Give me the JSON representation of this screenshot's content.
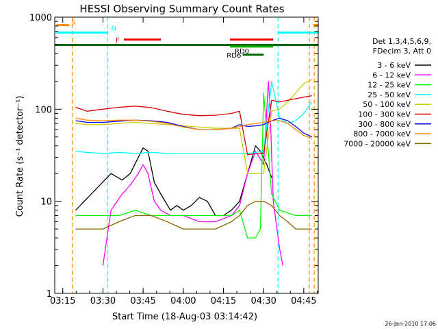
{
  "chart_data": {
    "type": "line",
    "title": "HESSI Observing Summary Count Rates",
    "xlabel": "Start Time (18-Aug-03 03:14:42)",
    "ylabel": "Count Rate (s⁻¹ detector⁻¹)",
    "yscale": "log",
    "ylim": [
      1,
      1000
    ],
    "xlim": [
      3.2,
      4.84
    ],
    "x_ticks": [
      {
        "v": 3.25,
        "label": "03:15"
      },
      {
        "v": 3.5,
        "label": "03:30"
      },
      {
        "v": 3.75,
        "label": "03:45"
      },
      {
        "v": 4.0,
        "label": "04:00"
      },
      {
        "v": 4.25,
        "label": "04:15"
      },
      {
        "v": 4.5,
        "label": "04:30"
      },
      {
        "v": 4.75,
        "label": "04:45"
      }
    ],
    "y_ticks": [
      {
        "v": 1,
        "label": "1"
      },
      {
        "v": 10,
        "label": "10"
      },
      {
        "v": 100,
        "label": "100"
      },
      {
        "v": 1000,
        "label": "1000"
      }
    ],
    "legend_header": [
      "Det 1,3,4,5,6,9,",
      "FDecim 3, Att 0"
    ],
    "legend_position": "right",
    "timestamp": "26-Jan-2010 17:06",
    "series": [
      {
        "name": "3 - 6 keV",
        "color": "#000000",
        "x": [
          3.33,
          3.55,
          3.62,
          3.67,
          3.72,
          3.75,
          3.78,
          3.82,
          3.86,
          3.92,
          3.96,
          4.0,
          4.05,
          4.1,
          4.15,
          4.2,
          4.25,
          4.3,
          4.35,
          4.4,
          4.45,
          4.48,
          4.52,
          4.55
        ],
        "values": [
          8,
          20,
          17,
          20,
          30,
          38,
          35,
          16,
          12,
          8,
          9,
          8,
          9,
          11,
          10,
          7,
          7,
          8,
          10,
          20,
          40,
          35,
          25,
          18
        ]
      },
      {
        "name": "6 - 12 keV",
        "color": "#ff00ff",
        "x": [
          3.5,
          3.55,
          3.62,
          3.67,
          3.72,
          3.75,
          3.78,
          3.82,
          3.86,
          3.92,
          4.0,
          4.1,
          4.2,
          4.3,
          4.35,
          4.4,
          4.45,
          4.5,
          4.53,
          4.54,
          4.56,
          4.6,
          4.62
        ],
        "values": [
          2,
          8,
          12,
          15,
          20,
          25,
          20,
          10,
          8,
          7,
          7,
          6,
          6,
          7,
          9,
          20,
          35,
          25,
          200,
          100,
          10,
          3,
          2
        ]
      },
      {
        "name": "12 - 25 keV",
        "color": "#00ff00",
        "x": [
          3.33,
          3.4,
          3.5,
          3.6,
          3.7,
          3.8,
          3.9,
          4.0,
          4.1,
          4.2,
          4.3,
          4.35,
          4.4,
          4.45,
          4.48,
          4.5,
          4.55,
          4.6,
          4.7,
          4.75,
          4.8
        ],
        "values": [
          7,
          7,
          7,
          7,
          8,
          7,
          7,
          7,
          7,
          7,
          7,
          8,
          4,
          4,
          5,
          150,
          12,
          8,
          7,
          7,
          7
        ]
      },
      {
        "name": "25 - 50 keV",
        "color": "#00ffff",
        "x": [
          3.33,
          3.4,
          3.5,
          3.6,
          3.7,
          3.8,
          3.9,
          4.0,
          4.1,
          4.2,
          4.3,
          4.35,
          4.4,
          4.45,
          4.5,
          4.55,
          4.6,
          4.65,
          4.7,
          4.75,
          4.8
        ],
        "values": [
          35,
          34,
          33,
          34,
          33,
          34,
          33,
          33,
          33,
          33,
          33,
          33,
          33,
          34,
          35,
          200,
          80,
          70,
          75,
          90,
          120
        ]
      },
      {
        "name": "50 - 100 keV",
        "color": "#cccc00",
        "x": [
          3.33,
          3.4,
          3.5,
          3.6,
          3.7,
          3.8,
          3.9,
          4.0,
          4.1,
          4.2,
          4.3,
          4.35,
          4.4,
          4.45,
          4.5,
          4.55,
          4.6,
          4.65,
          4.7,
          4.75,
          4.8
        ],
        "values": [
          70,
          68,
          68,
          70,
          72,
          70,
          68,
          66,
          64,
          62,
          62,
          62,
          20,
          20,
          20,
          95,
          100,
          120,
          150,
          190,
          210
        ]
      },
      {
        "name": "100 - 300 keV",
        "color": "#dd0000",
        "x": [
          3.33,
          3.4,
          3.5,
          3.6,
          3.7,
          3.8,
          3.9,
          4.0,
          4.1,
          4.2,
          4.3,
          4.35,
          4.4,
          4.45,
          4.5,
          4.55,
          4.6,
          4.65,
          4.7,
          4.75,
          4.8
        ],
        "values": [
          105,
          95,
          100,
          105,
          108,
          104,
          95,
          88,
          85,
          86,
          90,
          95,
          32,
          33,
          33,
          125,
          120,
          125,
          130,
          135,
          140
        ]
      },
      {
        "name": "300 - 800 keV",
        "color": "#0000ee",
        "x": [
          3.33,
          3.4,
          3.5,
          3.6,
          3.7,
          3.8,
          3.9,
          4.0,
          4.1,
          4.2,
          4.3,
          4.35,
          4.4,
          4.45,
          4.5,
          4.55,
          4.6,
          4.65,
          4.7,
          4.75,
          4.8
        ],
        "values": [
          75,
          72,
          72,
          74,
          76,
          75,
          72,
          65,
          60,
          60,
          62,
          68,
          65,
          66,
          68,
          75,
          80,
          75,
          65,
          55,
          50
        ]
      },
      {
        "name": "800 - 7000 keV",
        "color": "#ff8800",
        "x": [
          3.33,
          3.4,
          3.5,
          3.6,
          3.7,
          3.8,
          3.9,
          4.0,
          4.1,
          4.2,
          4.3,
          4.35,
          4.4,
          4.45,
          4.5,
          4.55,
          4.6,
          4.65,
          4.7,
          4.75,
          4.8
        ],
        "values": [
          80,
          76,
          75,
          76,
          76,
          74,
          70,
          64,
          60,
          60,
          62,
          65,
          68,
          70,
          72,
          75,
          75,
          70,
          60,
          52,
          48
        ]
      },
      {
        "name": "7000 - 20000 keV",
        "color": "#886600",
        "x": [
          3.33,
          3.4,
          3.5,
          3.6,
          3.7,
          3.8,
          3.9,
          4.0,
          4.1,
          4.2,
          4.3,
          4.35,
          4.4,
          4.45,
          4.5,
          4.55,
          4.6,
          4.65,
          4.7,
          4.75,
          4.8
        ],
        "values": [
          5,
          5,
          5,
          6,
          7,
          7,
          6,
          5,
          5,
          5,
          6,
          7,
          9,
          10,
          10,
          9,
          7,
          6,
          5,
          5,
          5
        ]
      }
    ],
    "flag_bars": [
      {
        "label": "S",
        "color": "#ff8800",
        "y": 820,
        "segments": [
          [
            3.21,
            3.29
          ],
          [
            4.81,
            4.84
          ]
        ]
      },
      {
        "label": "N",
        "color": "#00ffff",
        "y": 680,
        "segments": [
          [
            3.21,
            3.53
          ],
          [
            4.59,
            4.84
          ]
        ]
      },
      {
        "label": "F",
        "color": "#ee0000",
        "y": 570,
        "segments": [
          [
            3.63,
            3.86
          ],
          [
            4.29,
            4.56
          ]
        ]
      },
      {
        "label": "RD0",
        "color": "#00aa00",
        "y": 480,
        "segments": [
          [
            4.29,
            4.56
          ]
        ]
      },
      {
        "label": "RD6",
        "color": "#006600",
        "y": 390,
        "segments": [
          [
            4.37,
            4.5
          ]
        ]
      }
    ],
    "flag_lines": [
      {
        "name": "RD6 baseline",
        "color": "#006600",
        "y": 500,
        "segments": [
          [
            3.2,
            4.84
          ]
        ]
      }
    ],
    "vlines": [
      {
        "x": 3.31,
        "color": "#ff8800"
      },
      {
        "x": 3.53,
        "color": "#00ffff"
      },
      {
        "x": 4.59,
        "color": "#00ffff"
      },
      {
        "x": 4.785,
        "color": "#ff8800"
      },
      {
        "x": 4.815,
        "color": "#ff8800"
      }
    ]
  }
}
